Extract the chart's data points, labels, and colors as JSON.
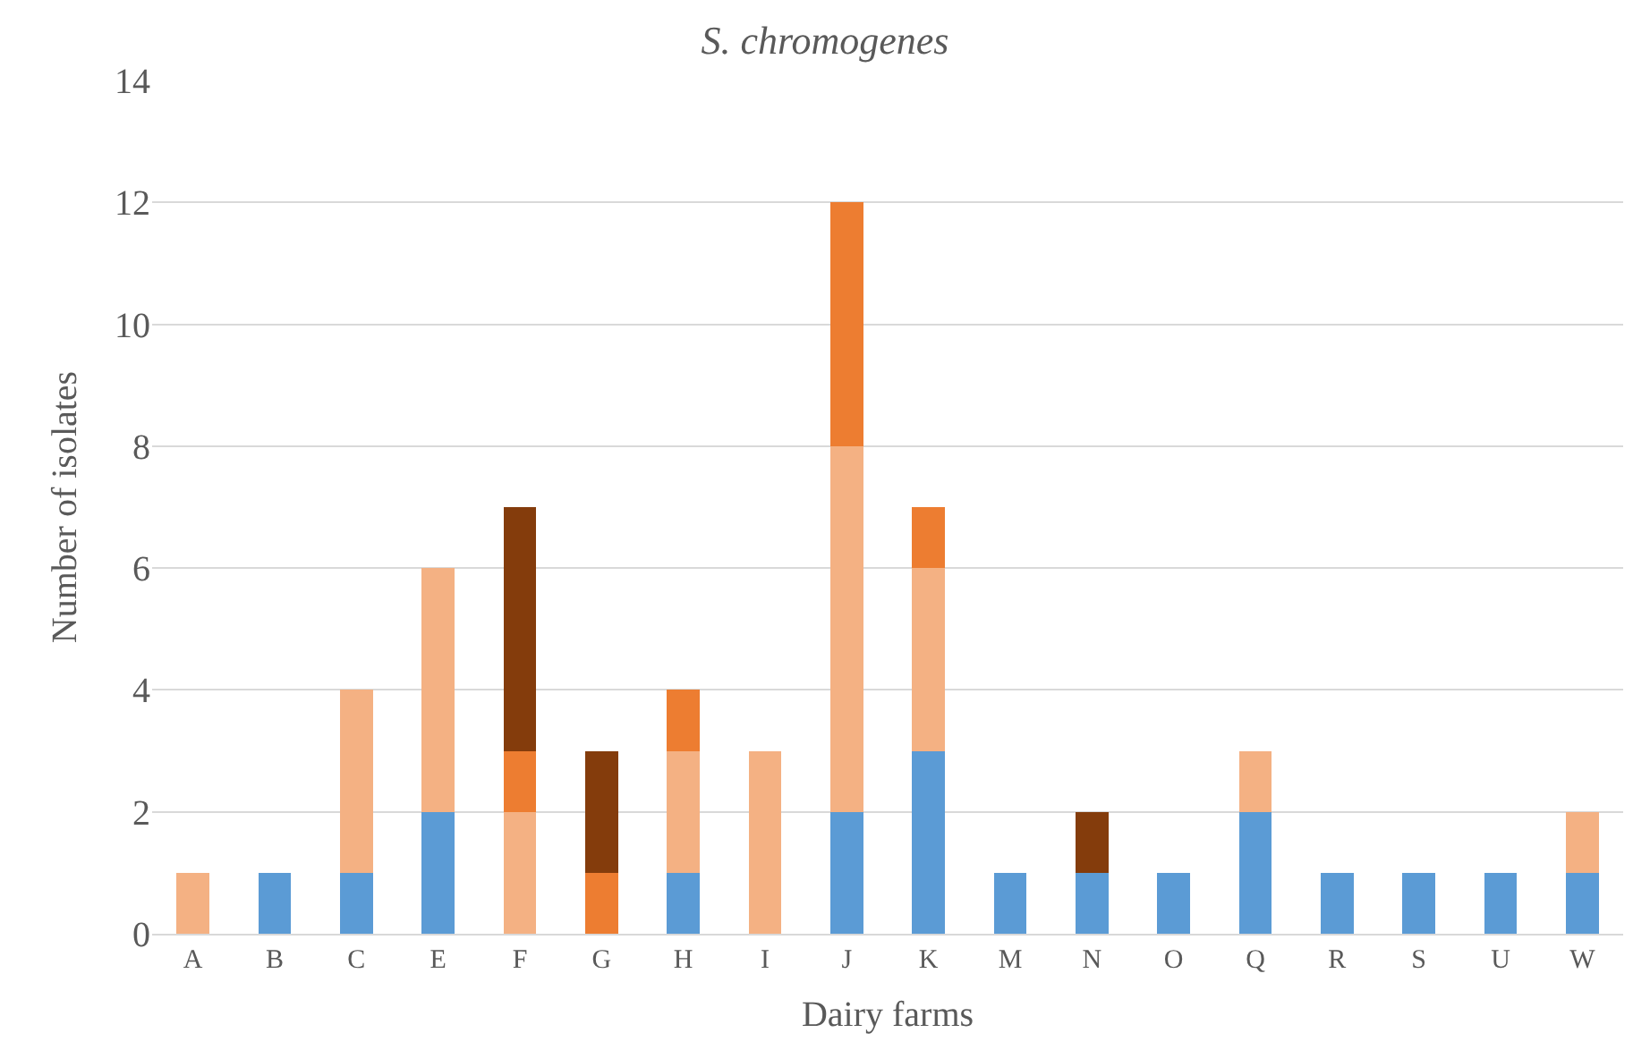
{
  "chart_data": {
    "type": "bar",
    "title": "S. chromogenes",
    "xlabel": "Dairy farms",
    "ylabel": "Number of isolates",
    "categories": [
      "A",
      "B",
      "C",
      "E",
      "F",
      "G",
      "H",
      "I",
      "J",
      "K",
      "M",
      "N",
      "O",
      "Q",
      "R",
      "S",
      "U",
      "W"
    ],
    "stacked": true,
    "series": [
      {
        "color": "#5b9bd5",
        "values": [
          0,
          1,
          1,
          2,
          0,
          0,
          1,
          0,
          2,
          3,
          1,
          1,
          1,
          2,
          1,
          1,
          1,
          1
        ]
      },
      {
        "color": "#f4b183",
        "values": [
          1,
          0,
          3,
          4,
          2,
          0,
          2,
          3,
          6,
          3,
          0,
          0,
          0,
          1,
          0,
          0,
          0,
          1
        ]
      },
      {
        "color": "#ed7d31",
        "values": [
          0,
          0,
          0,
          0,
          1,
          1,
          1,
          0,
          4,
          1,
          0,
          0,
          0,
          0,
          0,
          0,
          0,
          0
        ]
      },
      {
        "color": "#843c0c",
        "values": [
          0,
          0,
          0,
          0,
          4,
          2,
          0,
          0,
          0,
          0,
          0,
          1,
          0,
          0,
          0,
          0,
          0,
          0
        ]
      }
    ],
    "ylim": [
      0,
      14
    ],
    "yticks": [
      0,
      2,
      4,
      6,
      8,
      10,
      12,
      14
    ],
    "grid": "y"
  }
}
